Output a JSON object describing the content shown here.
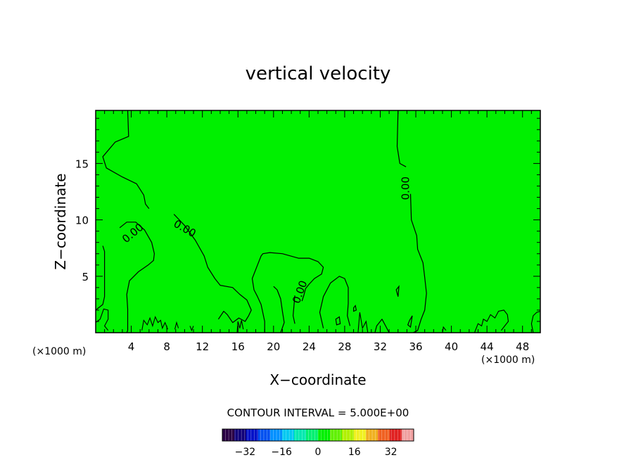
{
  "chart_data": {
    "type": "heatmap",
    "title": "vertical velocity",
    "xlabel": "X−coordinate",
    "ylabel": "Z−coordinate",
    "x_unit_left": "(×1000 m)",
    "x_unit_right": "(×1000 m)",
    "xlim": [
      0,
      50
    ],
    "ylim": [
      0,
      19.7
    ],
    "x_ticks": [
      "4",
      "8",
      "12",
      "16",
      "20",
      "24",
      "28",
      "32",
      "36",
      "40",
      "44",
      "48"
    ],
    "y_ticks": [
      "5",
      "10",
      "15"
    ],
    "background_color": "#00f000",
    "contour_interval_text": "CONTOUR INTERVAL = 5.000E+00",
    "contour_labels": [
      "0.00",
      "0.00",
      "0.00",
      "0.00"
    ],
    "contours": [
      [
        [
          3.6,
          19.7
        ],
        [
          3.7,
          17.4
        ],
        [
          2.2,
          16.9
        ],
        [
          0.8,
          15.6
        ],
        [
          1.2,
          14.6
        ],
        [
          3.0,
          13.8
        ],
        [
          4.6,
          13.2
        ],
        [
          5.4,
          12.2
        ],
        [
          5.6,
          11.4
        ],
        [
          6.0,
          11.0
        ]
      ],
      [
        [
          8.8,
          10.5
        ],
        [
          10.0,
          9.5
        ],
        [
          11.2,
          8.2
        ],
        [
          12.2,
          6.8
        ],
        [
          12.6,
          5.8
        ],
        [
          13.4,
          4.8
        ],
        [
          14.0,
          4.2
        ],
        [
          15.4,
          4.0
        ],
        [
          16.2,
          3.4
        ],
        [
          17.0,
          2.9
        ],
        [
          17.5,
          2.0
        ],
        [
          17.2,
          1.5
        ],
        [
          16.8,
          1.0
        ],
        [
          16.1,
          1.3
        ],
        [
          15.4,
          0.9
        ],
        [
          14.8,
          1.6
        ],
        [
          14.4,
          1.9
        ],
        [
          13.8,
          1.2
        ]
      ],
      [
        [
          34.0,
          19.7
        ],
        [
          33.9,
          16.5
        ],
        [
          34.2,
          15.0
        ],
        [
          34.9,
          14.7
        ]
      ],
      [
        [
          35.4,
          12.3
        ],
        [
          35.5,
          10.0
        ],
        [
          36.1,
          8.6
        ],
        [
          36.2,
          7.4
        ],
        [
          36.8,
          6.2
        ],
        [
          37.0,
          4.9
        ],
        [
          37.2,
          3.5
        ],
        [
          37.0,
          2.0
        ],
        [
          36.6,
          1.2
        ],
        [
          36.2,
          0.2
        ],
        [
          35.7,
          0.0
        ]
      ],
      [
        [
          0.0,
          2.0
        ],
        [
          0.8,
          2.5
        ],
        [
          1.0,
          3.2
        ],
        [
          1.0,
          4.8
        ],
        [
          1.0,
          7.2
        ],
        [
          0.8,
          7.7
        ]
      ],
      [
        [
          2.7,
          9.3
        ],
        [
          3.5,
          9.8
        ],
        [
          4.5,
          9.8
        ],
        [
          5.5,
          9.1
        ],
        [
          6.3,
          8.0
        ],
        [
          6.6,
          7.0
        ],
        [
          6.5,
          6.4
        ],
        [
          5.9,
          6.0
        ],
        [
          4.8,
          5.4
        ],
        [
          3.8,
          4.6
        ],
        [
          3.5,
          3.4
        ],
        [
          3.6,
          2.1
        ],
        [
          3.6,
          1.0
        ],
        [
          3.6,
          0.2
        ],
        [
          3.5,
          0.0
        ]
      ],
      [
        [
          19.0,
          0.0
        ],
        [
          19.0,
          1.0
        ],
        [
          18.6,
          2.5
        ],
        [
          18.2,
          3.2
        ],
        [
          17.8,
          3.8
        ],
        [
          17.6,
          4.8
        ],
        [
          18.2,
          6.0
        ],
        [
          18.6,
          6.8
        ],
        [
          18.8,
          7.0
        ],
        [
          19.6,
          7.1
        ],
        [
          21.0,
          7.0
        ],
        [
          22.8,
          6.6
        ],
        [
          24.0,
          6.6
        ],
        [
          25.0,
          6.3
        ],
        [
          25.6,
          5.8
        ],
        [
          25.4,
          5.2
        ],
        [
          24.6,
          4.8
        ],
        [
          24.0,
          4.3
        ],
        [
          23.6,
          3.9
        ],
        [
          23.4,
          3.3
        ],
        [
          23.2,
          2.8
        ]
      ],
      [
        [
          20.0,
          4.1
        ],
        [
          20.4,
          3.8
        ],
        [
          20.8,
          3.0
        ],
        [
          21.0,
          1.9
        ],
        [
          21.2,
          0.9
        ],
        [
          20.8,
          0.0
        ]
      ],
      [
        [
          22.4,
          3.3
        ],
        [
          22.2,
          1.5
        ],
        [
          22.4,
          0.8
        ]
      ],
      [
        [
          25.6,
          0.4
        ],
        [
          25.2,
          1.8
        ],
        [
          25.6,
          3.2
        ],
        [
          26.4,
          4.4
        ],
        [
          27.4,
          5.0
        ],
        [
          28.0,
          4.8
        ],
        [
          28.4,
          4.0
        ],
        [
          28.4,
          2.6
        ],
        [
          28.3,
          1.5
        ],
        [
          28.6,
          0.6
        ]
      ],
      [
        [
          31.4,
          0.0
        ],
        [
          31.6,
          0.6
        ],
        [
          32.2,
          1.2
        ],
        [
          32.6,
          0.6
        ],
        [
          33.0,
          0.0
        ]
      ]
    ],
    "closed_contours": [
      [
        [
          33.8,
          3.8
        ],
        [
          34.1,
          4.1
        ],
        [
          34.0,
          3.2
        ]
      ],
      [
        [
          35.3,
          1.1
        ],
        [
          35.6,
          1.5
        ],
        [
          35.4,
          0.5
        ],
        [
          35.1,
          0.7
        ]
      ],
      [
        [
          27.0,
          1.2
        ],
        [
          27.4,
          1.4
        ],
        [
          27.5,
          0.8
        ],
        [
          27.1,
          0.7
        ]
      ],
      [
        [
          29.0,
          2.2
        ],
        [
          29.2,
          2.4
        ],
        [
          29.3,
          2.0
        ],
        [
          29.0,
          1.9
        ]
      ]
    ],
    "surface_wiggles": [
      [
        [
          0.0,
          0.9
        ],
        [
          0.5,
          1.2
        ],
        [
          0.9,
          2.1
        ],
        [
          1.4,
          2.0
        ],
        [
          1.4,
          1.2
        ],
        [
          1.0,
          0.6
        ],
        [
          1.4,
          0.2
        ]
      ],
      [
        [
          5.2,
          0.2
        ],
        [
          5.4,
          1.1
        ],
        [
          5.8,
          0.7
        ],
        [
          6.1,
          1.3
        ],
        [
          6.4,
          0.6
        ],
        [
          6.7,
          1.4
        ],
        [
          7.0,
          0.9
        ],
        [
          7.3,
          1.1
        ],
        [
          7.5,
          0.4
        ],
        [
          7.8,
          0.9
        ],
        [
          8.1,
          0.3
        ]
      ],
      [
        [
          8.9,
          0.3
        ],
        [
          9.1,
          0.9
        ],
        [
          9.3,
          0.4
        ]
      ],
      [
        [
          10.6,
          0.6
        ],
        [
          10.8,
          0.2
        ],
        [
          11.0,
          0.6
        ]
      ],
      [
        [
          15.9,
          0.0
        ],
        [
          16.0,
          1.0
        ],
        [
          16.2,
          0.4
        ],
        [
          16.4,
          1.1
        ],
        [
          16.6,
          0.3
        ]
      ],
      [
        [
          29.5,
          0.0
        ],
        [
          29.7,
          1.8
        ],
        [
          30.0,
          0.4
        ],
        [
          30.4,
          1.0
        ],
        [
          30.6,
          0.0
        ]
      ],
      [
        [
          39.0,
          0.0
        ],
        [
          39.1,
          0.5
        ],
        [
          39.4,
          0.2
        ]
      ],
      [
        [
          42.6,
          0.0
        ],
        [
          43.0,
          0.8
        ],
        [
          43.4,
          0.6
        ],
        [
          43.6,
          1.2
        ],
        [
          44.0,
          1.0
        ],
        [
          44.4,
          1.6
        ],
        [
          44.9,
          1.3
        ],
        [
          45.3,
          1.9
        ],
        [
          45.9,
          2.0
        ],
        [
          46.3,
          1.6
        ],
        [
          46.4,
          1.0
        ],
        [
          46.0,
          0.6
        ],
        [
          45.6,
          0.2
        ]
      ],
      [
        [
          49.2,
          0.0
        ],
        [
          49.0,
          0.8
        ],
        [
          49.2,
          1.5
        ],
        [
          49.6,
          1.8
        ],
        [
          50.0,
          1.9
        ]
      ]
    ],
    "colorbar": {
      "ticks": [
        "−32",
        "−16",
        "0",
        "16",
        "32"
      ],
      "tick_values": [
        -32,
        -16,
        0,
        16,
        32
      ],
      "range": [
        -42,
        42
      ],
      "colors": [
        "#2a0044",
        "#10007a",
        "#0010c8",
        "#0050f0",
        "#0090ff",
        "#00c8f0",
        "#00e8b0",
        "#00f070",
        "#00f000",
        "#60f000",
        "#b0f000",
        "#f0f020",
        "#f0b020",
        "#f06020",
        "#e02020",
        "#f0a0a0"
      ]
    }
  }
}
